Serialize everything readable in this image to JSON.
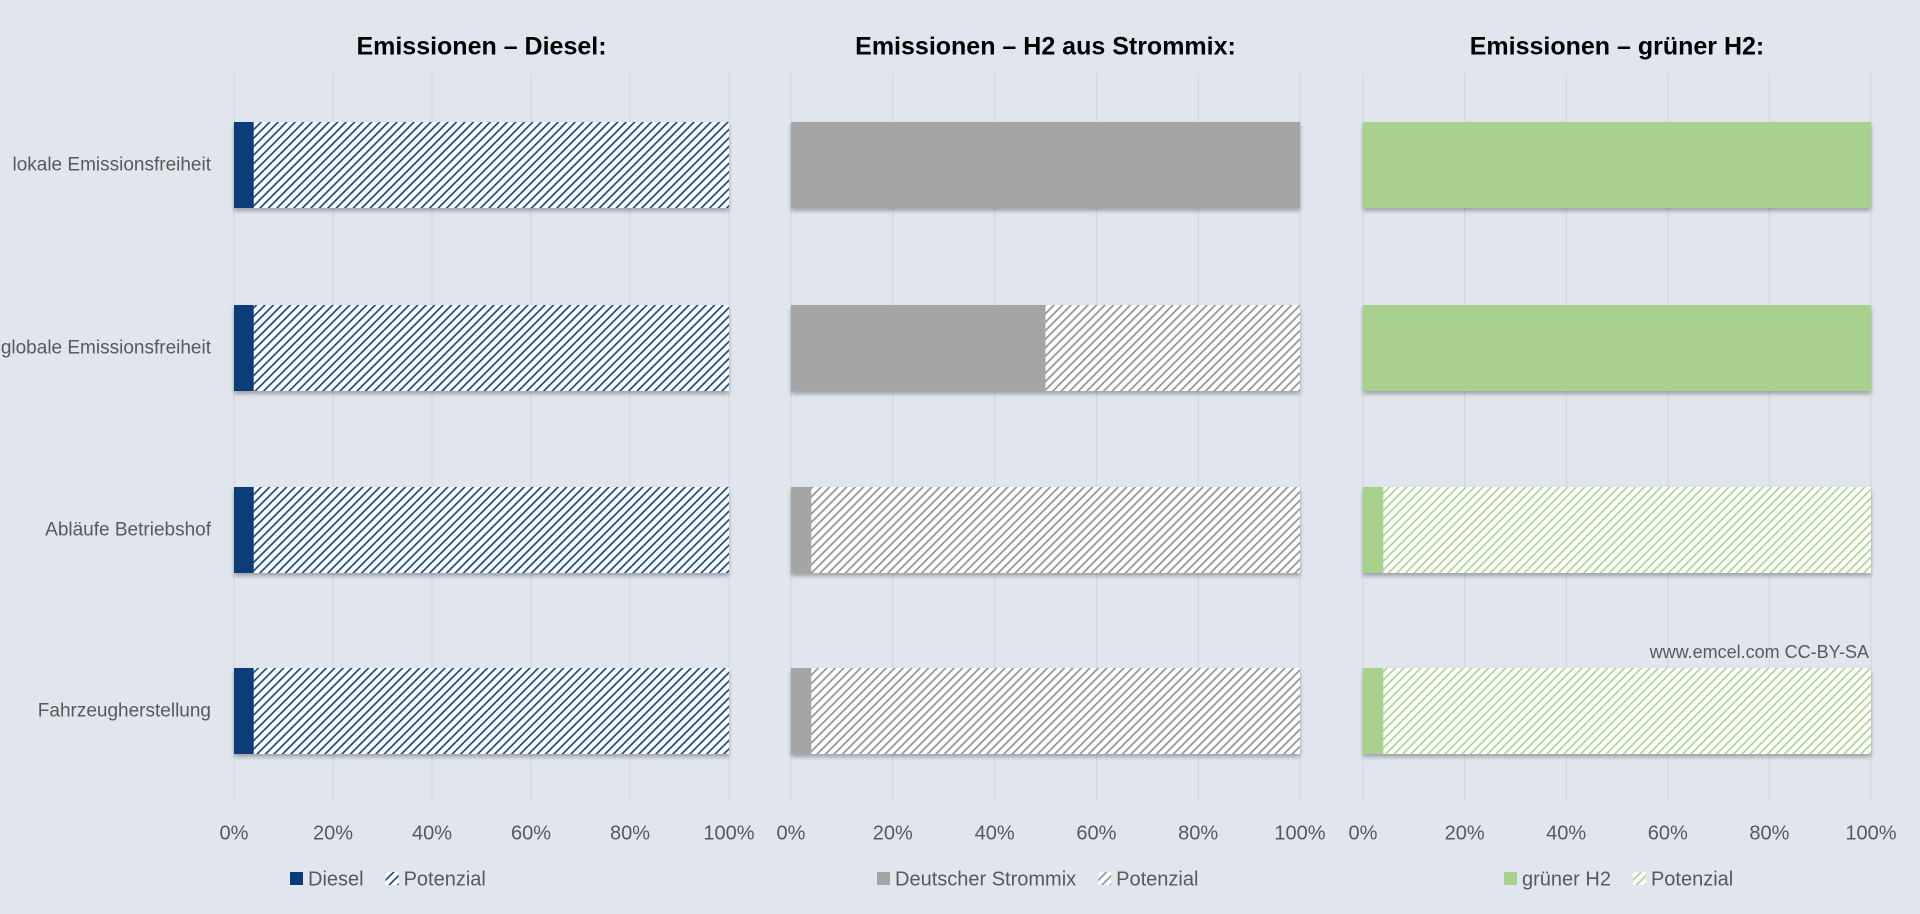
{
  "chart_data": [
    {
      "type": "bar",
      "orientation": "horizontal",
      "stacked": true,
      "title": "Emissionen – Diesel:",
      "categories": [
        "lokale Emissionsfreiheit",
        "globale Emissionsfreiheit",
        "Abläufe Betriebshof",
        "Fahrzeugherstellung"
      ],
      "series": [
        {
          "name": "Diesel",
          "color": "#0b3c78",
          "hatch": false,
          "values": [
            4,
            4,
            4,
            4
          ]
        },
        {
          "name": "Potenzial",
          "color": "#0b3c78",
          "hatch": true,
          "values": [
            96,
            96,
            96,
            96
          ]
        }
      ],
      "xlim": [
        0,
        100
      ],
      "xticks": [
        {
          "value": 0,
          "label": "0%"
        },
        {
          "value": 20,
          "label": "20%"
        },
        {
          "value": 40,
          "label": "40%"
        },
        {
          "value": 60,
          "label": "60%"
        },
        {
          "value": 80,
          "label": "80%"
        },
        {
          "value": 100,
          "label": "100%"
        }
      ],
      "grid": true
    },
    {
      "type": "bar",
      "orientation": "horizontal",
      "stacked": true,
      "title": "Emissionen – H2 aus Strommix:",
      "categories": [
        null,
        null,
        null,
        null
      ],
      "series": [
        {
          "name": "Deutscher Strommix",
          "color": "#a5a5a5",
          "hatch": false,
          "values": [
            100,
            50,
            4,
            4
          ]
        },
        {
          "name": "Potenzial",
          "color": "#8c8c8c",
          "hatch": true,
          "values": [
            0,
            50,
            96,
            96
          ]
        }
      ],
      "xlim": [
        0,
        100
      ],
      "xticks": [
        {
          "value": 0,
          "label": "0%"
        },
        {
          "value": 20,
          "label": "20%"
        },
        {
          "value": 40,
          "label": "40%"
        },
        {
          "value": 60,
          "label": "60%"
        },
        {
          "value": 80,
          "label": "80%"
        },
        {
          "value": 100,
          "label": "100%"
        }
      ],
      "grid": true
    },
    {
      "type": "bar",
      "orientation": "horizontal",
      "stacked": true,
      "title": "Emissionen – grüner H2:",
      "categories": [
        null,
        null,
        null,
        null
      ],
      "series": [
        {
          "name": "grüner H2",
          "color": "#a9d18e",
          "hatch": false,
          "values": [
            100,
            100,
            4,
            4
          ]
        },
        {
          "name": "Potenzial",
          "color": "#a9d18e",
          "hatch": true,
          "values": [
            0,
            0,
            96,
            96
          ]
        }
      ],
      "xlim": [
        0,
        100
      ],
      "xticks": [
        {
          "value": 0,
          "label": "0%"
        },
        {
          "value": 20,
          "label": "20%"
        },
        {
          "value": 40,
          "label": "40%"
        },
        {
          "value": 60,
          "label": "60%"
        },
        {
          "value": 80,
          "label": "80%"
        },
        {
          "value": 100,
          "label": "100%"
        }
      ],
      "grid": true,
      "annotation": "www.emcel.com CC-BY-SA"
    }
  ]
}
